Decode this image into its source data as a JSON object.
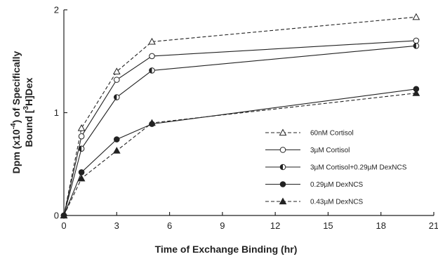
{
  "chart_data": {
    "type": "line",
    "title": "",
    "xlabel": "Time of Exchange Binding (hr)",
    "ylabel_line1": "Dpm (x10",
    "ylabel_sup1": "-4",
    "ylabel_line1_end": ") of Specifically",
    "ylabel_line2": "Bound [",
    "ylabel_sup2": "3",
    "ylabel_line2_end": "H]Dex",
    "xlim": [
      0,
      21
    ],
    "ylim": [
      0,
      2
    ],
    "x_ticks": [
      0,
      3,
      6,
      9,
      12,
      15,
      18,
      21
    ],
    "x_tick_labels": [
      "0",
      "3",
      "6",
      "9",
      "12",
      "15",
      "18",
      "21"
    ],
    "y_ticks": [
      0,
      1,
      2
    ],
    "y_tick_labels": [
      "0",
      "1",
      "2"
    ],
    "grid": false,
    "legend_position": "bottom-right",
    "series": [
      {
        "name": "60nM Cortisol",
        "marker": "triangle-open",
        "dashed": true,
        "x": [
          0,
          1,
          3,
          5,
          20
        ],
        "y": [
          0,
          0.85,
          1.4,
          1.69,
          1.93
        ]
      },
      {
        "name": "3µM Cortisol",
        "marker": "circle-open",
        "dashed": false,
        "x": [
          0,
          1,
          3,
          5,
          20
        ],
        "y": [
          0,
          0.77,
          1.32,
          1.55,
          1.7
        ]
      },
      {
        "name": "3µM Cortisol+0.29µM DexNCS",
        "marker": "circle-half",
        "dashed": false,
        "x": [
          0,
          1,
          3,
          5,
          20
        ],
        "y": [
          0,
          0.65,
          1.15,
          1.41,
          1.65
        ]
      },
      {
        "name": "0.29µM DexNCS",
        "marker": "circle-filled",
        "dashed": false,
        "x": [
          0,
          1,
          3,
          5,
          20
        ],
        "y": [
          0,
          0.42,
          0.74,
          0.89,
          1.23
        ]
      },
      {
        "name": "0.43µM DexNCS",
        "marker": "triangle-filled",
        "dashed": true,
        "x": [
          0,
          1,
          3,
          5,
          20
        ],
        "y": [
          0,
          0.36,
          0.63,
          0.9,
          1.19
        ]
      }
    ]
  }
}
